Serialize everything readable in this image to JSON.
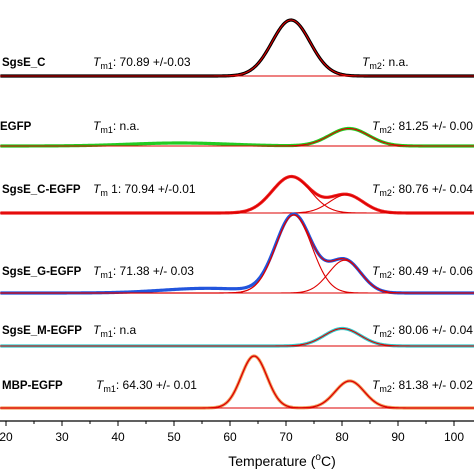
{
  "chart_data": {
    "type": "line",
    "xlabel_main": "Temperature (",
    "xlabel_unit": "o",
    "xlabel_end": "C)",
    "xlim": [
      20,
      110
    ],
    "xticks": [
      20,
      30,
      40,
      50,
      60,
      70,
      80,
      90,
      100
    ],
    "panels": [
      {
        "name": "SgsE_C",
        "tm1_sym": "T",
        "tm1_sub": "m1",
        "tm1_value": ": 70.89 +/-0.03",
        "tm2_sym": "T",
        "tm2_sub": "m2",
        "tm2_value": ": n.a.",
        "data_color": "#000000",
        "peaks": [
          {
            "center": 70.9,
            "height": 1.0,
            "width": 3.4
          }
        ],
        "baseline_fit": true
      },
      {
        "name": "EGFP",
        "tm1_sym": "T",
        "tm1_sub": "m1",
        "tm1_value": ": n.a.",
        "tm2_sym": "T",
        "tm2_sub": "m2",
        "tm2_value": ": 81.25 +/- 0.00",
        "data_color": "#22cc22",
        "peaks": [
          {
            "center": 81.25,
            "height": 0.35,
            "width": 3.5
          }
        ],
        "bump": {
          "center": 51,
          "height": 0.06,
          "width": 9
        }
      },
      {
        "name": "SgsE_C-EGFP",
        "tm1_sym": "T",
        "tm1_sub": "m",
        "tm1_suffix": "1",
        "tm1_value": ": 70.94 +/-0.01",
        "tm2_sym": "T",
        "tm2_sub": "m2",
        "tm2_value": ": 80.76 +/- 0.04",
        "data_color": "#ee2222",
        "peaks": [
          {
            "center": 70.94,
            "height": 0.52,
            "width": 3.4
          },
          {
            "center": 80.76,
            "height": 0.26,
            "width": 3.0
          }
        ]
      },
      {
        "name": "SgsE_G-EGFP",
        "tm1_sym": "T",
        "tm1_sub": "m1",
        "tm1_value": ": 71.38 +/- 0.03",
        "tm2_sym": "T",
        "tm2_sub": "m2",
        "tm2_value": ": 80.49 +/- 0.06",
        "data_color": "#2255dd",
        "peaks": [
          {
            "center": 71.38,
            "height": 1.0,
            "width": 3.2
          },
          {
            "center": 80.49,
            "height": 0.42,
            "width": 2.9
          }
        ],
        "bump": {
          "center": 56,
          "height": 0.06,
          "width": 8
        }
      },
      {
        "name": "SgsE_M-EGFP",
        "tm1_sym": "T",
        "tm1_sub": "m1",
        "tm1_value": ": n.a",
        "tm2_sym": "T",
        "tm2_sub": "m2",
        "tm2_value": ": 80.06 +/- 0.04",
        "data_color": "#33cccc",
        "peaks": [
          {
            "center": 80.06,
            "height": 0.35,
            "width": 3.2
          }
        ]
      },
      {
        "name": "MBP-EGFP",
        "tm1_sym": "T",
        "tm1_sub": "m1",
        "tm1_value": ": 64.30 +/- 0.01",
        "tm2_sym": "T",
        "tm2_sub": "m2",
        "tm2_value": ": 81.38 +/- 0.02",
        "data_color": "#f0a060",
        "peaks": [
          {
            "center": 64.3,
            "height": 1.0,
            "width": 2.3
          },
          {
            "center": 81.38,
            "height": 0.52,
            "width": 2.6
          }
        ]
      }
    ],
    "fit_color": "#dd0000"
  }
}
